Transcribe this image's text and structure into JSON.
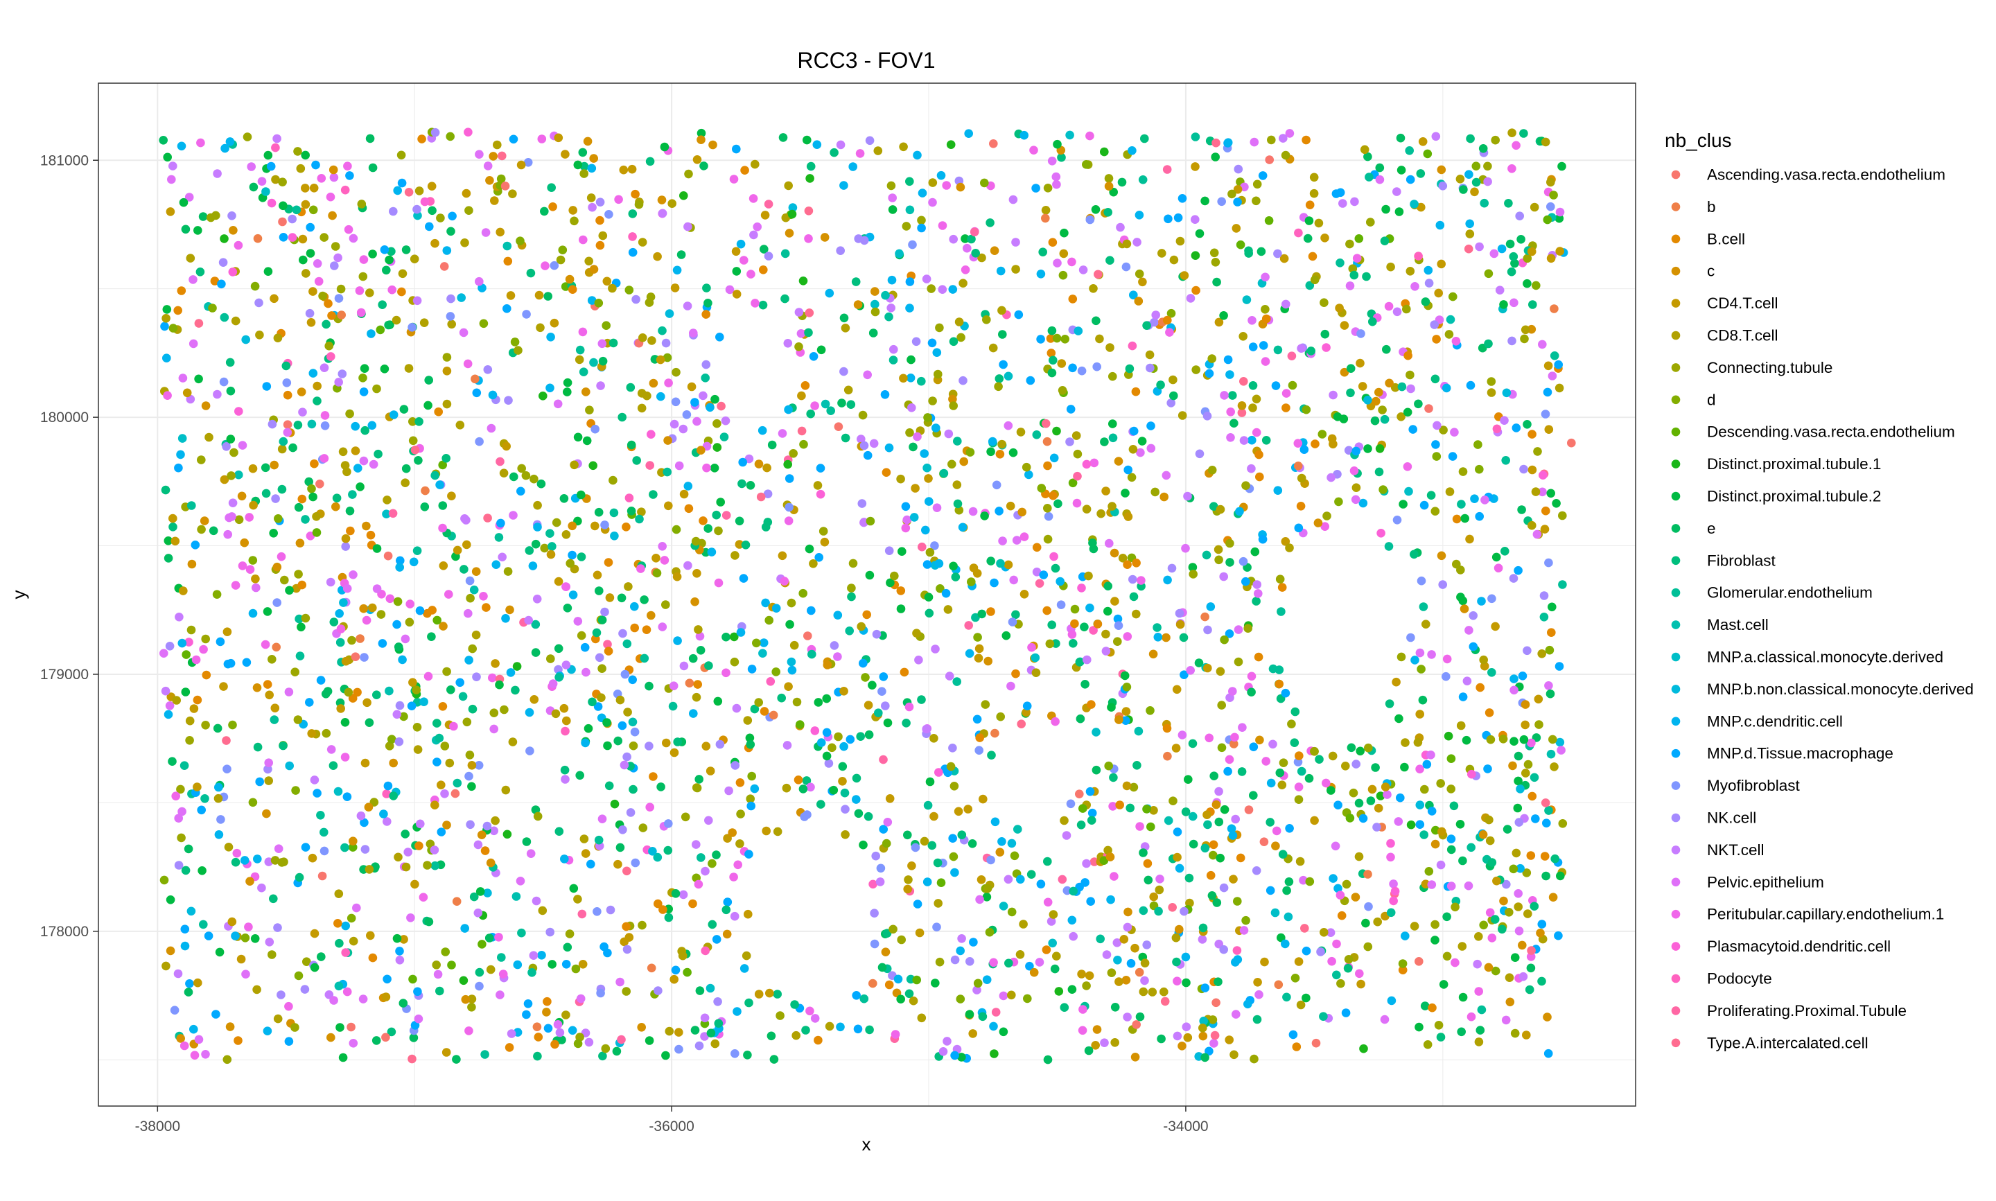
{
  "chart_data": {
    "type": "scatter",
    "title": "RCC3 - FOV1",
    "xlabel": "x",
    "ylabel": "y",
    "xlim": [
      -38230,
      -32250
    ],
    "ylim": [
      177320,
      181300
    ],
    "x_ticks": [
      -38000,
      -36000,
      -34000
    ],
    "y_ticks": [
      178000,
      179000,
      180000,
      181000
    ],
    "grid": true,
    "legend_title": "nb_clus",
    "legend_placement": "right",
    "categories": [
      {
        "name": "Ascending.vasa.recta.endothelium",
        "color": "#F8766D"
      },
      {
        "name": "b",
        "color": "#EF7F48"
      },
      {
        "name": "B.cell",
        "color": "#E38900"
      },
      {
        "name": "c",
        "color": "#D59100"
      },
      {
        "name": "CD4.T.cell",
        "color": "#C49A00"
      },
      {
        "name": "CD8.T.cell",
        "color": "#B1A100"
      },
      {
        "name": "Connecting.tubule",
        "color": "#9CA700"
      },
      {
        "name": "d",
        "color": "#83AD00"
      },
      {
        "name": "Descending.vasa.recta.endothelium",
        "color": "#62B200"
      },
      {
        "name": "Distinct.proximal.tubule.1",
        "color": "#1AB619"
      },
      {
        "name": "Distinct.proximal.tubule.2",
        "color": "#00BA42"
      },
      {
        "name": "e",
        "color": "#00BC61"
      },
      {
        "name": "Fibroblast",
        "color": "#00BE7D"
      },
      {
        "name": "Glomerular.endothelium",
        "color": "#00BF97"
      },
      {
        "name": "Mast.cell",
        "color": "#00C0AF"
      },
      {
        "name": "MNP.a.classical.monocyte.derived",
        "color": "#00BEC7"
      },
      {
        "name": "MNP.b.non.classical.monocyte.derived",
        "color": "#00BADC"
      },
      {
        "name": "MNP.c.dendritic.cell",
        "color": "#00B4EF"
      },
      {
        "name": "MNP.d.Tissue.macrophage",
        "color": "#00A9FF"
      },
      {
        "name": "Myofibroblast",
        "color": "#7F96FF"
      },
      {
        "name": "NK.cell",
        "color": "#A58AFF"
      },
      {
        "name": "NKT.cell",
        "color": "#C77CFF"
      },
      {
        "name": "Pelvic.epithelium",
        "color": "#DF70F8"
      },
      {
        "name": "Peritubular.capillary.endothelium.1",
        "color": "#F066EA"
      },
      {
        "name": "Plasmacytoid.dendritic.cell",
        "color": "#FB61D7"
      },
      {
        "name": "Podocyte",
        "color": "#FF62BF"
      },
      {
        "name": "Proliferating.Proximal.Tubule",
        "color": "#FF67A4"
      },
      {
        "name": "Type.A.intercalated.cell",
        "color": "#FF6C90"
      }
    ],
    "sample_points": [
      {
        "x": -37950,
        "y": 180800,
        "cluster": "CD4.T.cell"
      },
      {
        "x": -37500,
        "y": 180200,
        "cluster": "Fibroblast"
      },
      {
        "x": -36800,
        "y": 179600,
        "cluster": "NKT.cell"
      },
      {
        "x": -36200,
        "y": 178900,
        "cluster": "CD8.T.cell"
      },
      {
        "x": -35700,
        "y": 178300,
        "cluster": "MNP.d.Tissue.macrophage"
      },
      {
        "x": -35000,
        "y": 179300,
        "cluster": "Distinct.proximal.tubule.2"
      },
      {
        "x": -34500,
        "y": 180600,
        "cluster": "Pelvic.epithelium"
      },
      {
        "x": -34000,
        "y": 177900,
        "cluster": "MNP.c.dendritic.cell"
      },
      {
        "x": -33500,
        "y": 178700,
        "cluster": "Connecting.tubule"
      },
      {
        "x": -33000,
        "y": 180900,
        "cluster": "NK.cell"
      },
      {
        "x": -32600,
        "y": 178500,
        "cluster": "Type.A.intercalated.cell"
      },
      {
        "x": -32500,
        "y": 179900,
        "cluster": "Ascending.vasa.recta.endothelium"
      }
    ]
  }
}
